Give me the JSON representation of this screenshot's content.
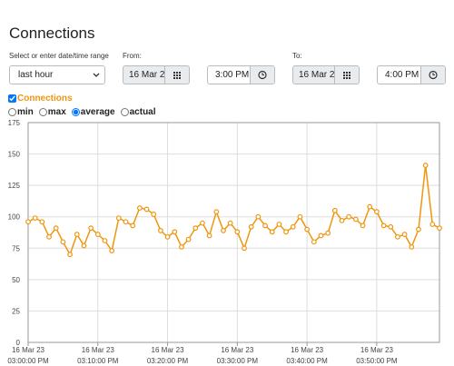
{
  "page": {
    "title": "Connections",
    "range_label": "Select or enter date/time range",
    "range_value": "last hour",
    "from_label": "From:",
    "from_date": "16 Mar 2",
    "from_time": "3:00 PM",
    "to_label": "To:",
    "to_date": "16 Mar 2",
    "to_time": "4:00 PM",
    "modes": [
      "min",
      "max",
      "average",
      "actual"
    ],
    "selected_mode": 2
  },
  "chart_data": {
    "type": "line",
    "x": [
      "03:00:00 PM",
      "03:01:00 PM",
      "03:02:00 PM",
      "03:03:00 PM",
      "03:04:00 PM",
      "03:05:00 PM",
      "03:06:00 PM",
      "03:07:00 PM",
      "03:08:00 PM",
      "03:09:00 PM",
      "03:10:00 PM",
      "03:11:00 PM",
      "03:12:00 PM",
      "03:13:00 PM",
      "03:14:00 PM",
      "03:15:00 PM",
      "03:16:00 PM",
      "03:17:00 PM",
      "03:18:00 PM",
      "03:19:00 PM",
      "03:20:00 PM",
      "03:21:00 PM",
      "03:22:00 PM",
      "03:23:00 PM",
      "03:24:00 PM",
      "03:25:00 PM",
      "03:26:00 PM",
      "03:27:00 PM",
      "03:28:00 PM",
      "03:29:00 PM",
      "03:30:00 PM",
      "03:31:00 PM",
      "03:32:00 PM",
      "03:33:00 PM",
      "03:34:00 PM",
      "03:35:00 PM",
      "03:36:00 PM",
      "03:37:00 PM",
      "03:38:00 PM",
      "03:39:00 PM",
      "03:40:00 PM",
      "03:41:00 PM",
      "03:42:00 PM",
      "03:43:00 PM",
      "03:44:00 PM",
      "03:45:00 PM",
      "03:46:00 PM",
      "03:47:00 PM",
      "03:48:00 PM",
      "03:49:00 PM",
      "03:50:00 PM",
      "03:51:00 PM",
      "03:52:00 PM",
      "03:53:00 PM",
      "03:54:00 PM",
      "03:55:00 PM",
      "03:56:00 PM",
      "03:57:00 PM",
      "03:58:00 PM",
      "03:59:00 PM"
    ],
    "series": [
      {
        "name": "Connections",
        "color": "#f0960e",
        "values": [
          96,
          99,
          96,
          84,
          91,
          80,
          70,
          86,
          77,
          91,
          86,
          81,
          73,
          99,
          96,
          93,
          107,
          106,
          102,
          89,
          84,
          88,
          76,
          82,
          91,
          95,
          85,
          104,
          89,
          95,
          88,
          75,
          92,
          100,
          93,
          88,
          94,
          88,
          92,
          100,
          90,
          80,
          85,
          87,
          105,
          97,
          100,
          98,
          93,
          108,
          104,
          93,
          92,
          84,
          86,
          76,
          90,
          141,
          94,
          91
        ]
      }
    ],
    "xlim": [
      "03:00:00 PM",
      "03:59:00 PM"
    ],
    "xticks": [
      {
        "value": "03:00:00 PM",
        "label": [
          "16 Mar 23",
          "03:00:00 PM"
        ]
      },
      {
        "value": "03:10:00 PM",
        "label": [
          "16 Mar 23",
          "03:10:00 PM"
        ]
      },
      {
        "value": "03:20:00 PM",
        "label": [
          "16 Mar 23",
          "03:20:00 PM"
        ]
      },
      {
        "value": "03:30:00 PM",
        "label": [
          "16 Mar 23",
          "03:30:00 PM"
        ]
      },
      {
        "value": "03:40:00 PM",
        "label": [
          "16 Mar 23",
          "03:40:00 PM"
        ]
      },
      {
        "value": "03:50:00 PM",
        "label": [
          "16 Mar 23",
          "03:50:00 PM"
        ]
      }
    ],
    "ylim": [
      0,
      175
    ],
    "yticks": [
      0,
      25,
      50,
      75,
      100,
      125,
      150,
      175
    ],
    "grid": true
  }
}
